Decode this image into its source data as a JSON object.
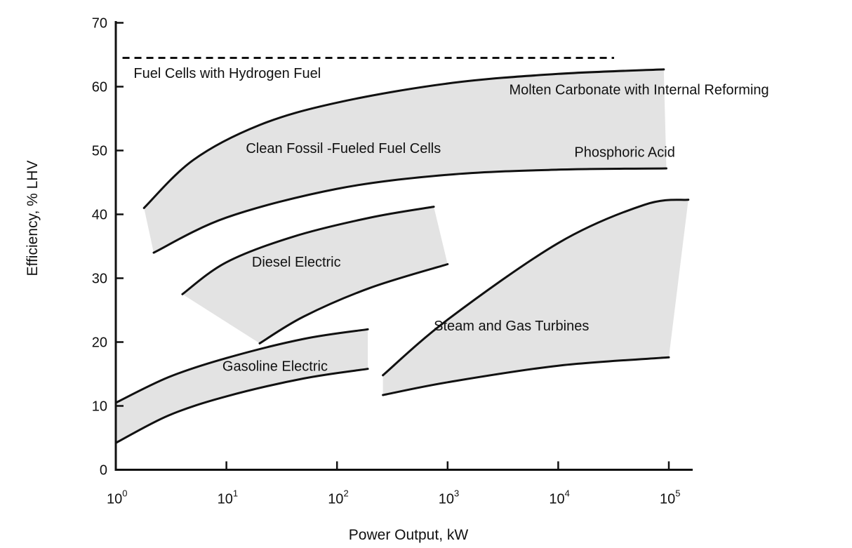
{
  "chart_data": {
    "type": "area",
    "title": "",
    "xlabel": "Power Output, kW",
    "ylabel": "Efficiency, % LHV",
    "xscale": "log10",
    "xlim": [
      1,
      100000
    ],
    "ylim": [
      0,
      70
    ],
    "grid": false,
    "y_ticks": [
      0,
      10,
      20,
      30,
      40,
      50,
      60,
      70
    ],
    "x_ticks": [
      {
        "value": 1,
        "base": "10",
        "exp": "0"
      },
      {
        "value": 10,
        "base": "10",
        "exp": "1"
      },
      {
        "value": 100,
        "base": "10",
        "exp": "2"
      },
      {
        "value": 1000,
        "base": "10",
        "exp": "3"
      },
      {
        "value": 10000,
        "base": "10",
        "exp": "4"
      },
      {
        "value": 100000,
        "base": "10",
        "exp": "5"
      }
    ],
    "reference_line": {
      "label": "Fuel Cells with Hydrogen Fuel",
      "y": 64.5,
      "x_range": [
        1.15,
        32000
      ]
    },
    "series": [
      {
        "name": "Clean Fossil -Fueled Fuel Cells",
        "color": "#e3e3e3",
        "upper": [
          [
            1.8,
            41
          ],
          [
            5,
            48.5
          ],
          [
            20,
            54
          ],
          [
            100,
            57.5
          ],
          [
            1000,
            60.5
          ],
          [
            10000,
            62
          ],
          [
            90000,
            62.7
          ]
        ],
        "lower": [
          [
            2.2,
            34
          ],
          [
            10,
            39.5
          ],
          [
            100,
            44
          ],
          [
            1000,
            46.2
          ],
          [
            10000,
            47
          ],
          [
            95000,
            47.2
          ]
        ],
        "upper_label": "Molten Carbonate with Internal Reforming",
        "lower_label": "Phosphoric Acid"
      },
      {
        "name": "Diesel Electric",
        "color": "#e3e3e3",
        "upper": [
          [
            4,
            27.5
          ],
          [
            10,
            32.5
          ],
          [
            40,
            36.5
          ],
          [
            200,
            39.5
          ],
          [
            750,
            41.2
          ]
        ],
        "lower": [
          [
            20,
            19.8
          ],
          [
            50,
            24
          ],
          [
            200,
            28.5
          ],
          [
            1000,
            32.2
          ]
        ]
      },
      {
        "name": "Gasoline Electric",
        "color": "#e3e3e3",
        "upper": [
          [
            1,
            10.5
          ],
          [
            3,
            14.5
          ],
          [
            10,
            17.5
          ],
          [
            50,
            20.5
          ],
          [
            190,
            22
          ]
        ],
        "lower": [
          [
            1,
            4.2
          ],
          [
            3,
            8.5
          ],
          [
            10,
            11.5
          ],
          [
            50,
            14.3
          ],
          [
            190,
            15.8
          ]
        ]
      },
      {
        "name": "Steam and Gas Turbines",
        "color": "#e3e3e3",
        "upper": [
          [
            260,
            14.8
          ],
          [
            1000,
            23.5
          ],
          [
            10000,
            35.5
          ],
          [
            60000,
            41.5
          ],
          [
            150000,
            42.3
          ]
        ],
        "lower": [
          [
            260,
            11.7
          ],
          [
            1000,
            13.7
          ],
          [
            10000,
            16.3
          ],
          [
            100000,
            17.6
          ]
        ]
      }
    ],
    "annotations": [
      {
        "id": "hydrogen",
        "text": "Fuel Cells with Hydrogen Fuel",
        "x": 1.45,
        "y": 61.4
      },
      {
        "id": "molten",
        "text": "Molten Carbonate with Internal Reforming",
        "x": 3600,
        "y": 58.8
      },
      {
        "id": "clean",
        "text": "Clean Fossil -Fueled Fuel Cells",
        "x": 15,
        "y": 49.6
      },
      {
        "id": "phosphoric",
        "text": "Phosphoric Acid",
        "x": 14000,
        "y": 49.0
      },
      {
        "id": "diesel",
        "text": "Diesel Electric",
        "x": 17,
        "y": 31.8
      },
      {
        "id": "steam",
        "text": "Steam and Gas Turbines",
        "x": 750,
        "y": 21.8
      },
      {
        "id": "gasoline",
        "text": "Gasoline Electric",
        "x": 9.2,
        "y": 15.5
      }
    ]
  }
}
